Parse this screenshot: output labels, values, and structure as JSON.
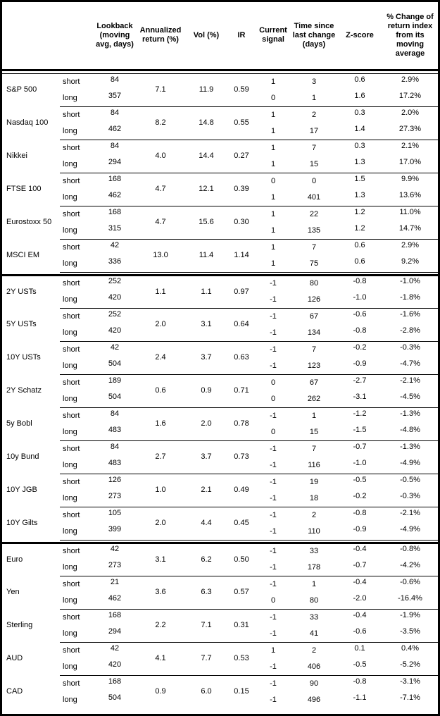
{
  "table": {
    "headers": [
      "",
      "",
      "Lookback (moving avg, days)",
      "Annualized return (%)",
      "Vol (%)",
      "IR",
      "Current signal",
      "Time since last change (days)",
      "Z-score",
      "% Change of return index from its moving average"
    ],
    "sections": [
      {
        "assets": [
          {
            "name": "S&P 500",
            "annualized_return": "7.1",
            "vol": "11.9",
            "ir": "0.59",
            "rows": [
              {
                "pos": "short",
                "lookback": "84",
                "signal": "1",
                "time_since_change": "3",
                "z_score": "0.6",
                "pct_change": "2.9%"
              },
              {
                "pos": "long",
                "lookback": "357",
                "signal": "0",
                "time_since_change": "1",
                "z_score": "1.6",
                "pct_change": "17.2%"
              }
            ]
          },
          {
            "name": "Nasdaq 100",
            "annualized_return": "8.2",
            "vol": "14.8",
            "ir": "0.55",
            "rows": [
              {
                "pos": "short",
                "lookback": "84",
                "signal": "1",
                "time_since_change": "2",
                "z_score": "0.3",
                "pct_change": "2.0%"
              },
              {
                "pos": "long",
                "lookback": "462",
                "signal": "1",
                "time_since_change": "17",
                "z_score": "1.4",
                "pct_change": "27.3%"
              }
            ]
          },
          {
            "name": "Nikkei",
            "annualized_return": "4.0",
            "vol": "14.4",
            "ir": "0.27",
            "rows": [
              {
                "pos": "short",
                "lookback": "84",
                "signal": "1",
                "time_since_change": "7",
                "z_score": "0.3",
                "pct_change": "2.1%"
              },
              {
                "pos": "long",
                "lookback": "294",
                "signal": "1",
                "time_since_change": "15",
                "z_score": "1.3",
                "pct_change": "17.0%"
              }
            ]
          },
          {
            "name": "FTSE 100",
            "annualized_return": "4.7",
            "vol": "12.1",
            "ir": "0.39",
            "rows": [
              {
                "pos": "short",
                "lookback": "168",
                "signal": "0",
                "time_since_change": "0",
                "z_score": "1.5",
                "pct_change": "9.9%"
              },
              {
                "pos": "long",
                "lookback": "462",
                "signal": "1",
                "time_since_change": "401",
                "z_score": "1.3",
                "pct_change": "13.6%"
              }
            ]
          },
          {
            "name": "Eurostoxx 50",
            "annualized_return": "4.7",
            "vol": "15.6",
            "ir": "0.30",
            "rows": [
              {
                "pos": "short",
                "lookback": "168",
                "signal": "1",
                "time_since_change": "22",
                "z_score": "1.2",
                "pct_change": "11.0%"
              },
              {
                "pos": "long",
                "lookback": "315",
                "signal": "1",
                "time_since_change": "135",
                "z_score": "1.2",
                "pct_change": "14.7%"
              }
            ]
          },
          {
            "name": "MSCI EM",
            "annualized_return": "13.0",
            "vol": "11.4",
            "ir": "1.14",
            "rows": [
              {
                "pos": "short",
                "lookback": "42",
                "signal": "1",
                "time_since_change": "7",
                "z_score": "0.6",
                "pct_change": "2.9%"
              },
              {
                "pos": "long",
                "lookback": "336",
                "signal": "1",
                "time_since_change": "75",
                "z_score": "0.6",
                "pct_change": "9.2%"
              }
            ]
          }
        ]
      },
      {
        "assets": [
          {
            "name": "2Y USTs",
            "annualized_return": "1.1",
            "vol": "1.1",
            "ir": "0.97",
            "rows": [
              {
                "pos": "short",
                "lookback": "252",
                "signal": "-1",
                "time_since_change": "80",
                "z_score": "-0.8",
                "pct_change": "-1.0%"
              },
              {
                "pos": "long",
                "lookback": "420",
                "signal": "-1",
                "time_since_change": "126",
                "z_score": "-1.0",
                "pct_change": "-1.8%"
              }
            ]
          },
          {
            "name": "5Y USTs",
            "annualized_return": "2.0",
            "vol": "3.1",
            "ir": "0.64",
            "rows": [
              {
                "pos": "short",
                "lookback": "252",
                "signal": "-1",
                "time_since_change": "67",
                "z_score": "-0.6",
                "pct_change": "-1.6%"
              },
              {
                "pos": "long",
                "lookback": "420",
                "signal": "-1",
                "time_since_change": "134",
                "z_score": "-0.8",
                "pct_change": "-2.8%"
              }
            ]
          },
          {
            "name": "10Y USTs",
            "annualized_return": "2.4",
            "vol": "3.7",
            "ir": "0.63",
            "rows": [
              {
                "pos": "short",
                "lookback": "42",
                "signal": "-1",
                "time_since_change": "7",
                "z_score": "-0.2",
                "pct_change": "-0.3%"
              },
              {
                "pos": "long",
                "lookback": "504",
                "signal": "-1",
                "time_since_change": "123",
                "z_score": "-0.9",
                "pct_change": "-4.7%"
              }
            ]
          },
          {
            "name": "2Y Schatz",
            "annualized_return": "0.6",
            "vol": "0.9",
            "ir": "0.71",
            "rows": [
              {
                "pos": "short",
                "lookback": "189",
                "signal": "0",
                "time_since_change": "67",
                "z_score": "-2.7",
                "pct_change": "-2.1%"
              },
              {
                "pos": "long",
                "lookback": "504",
                "signal": "0",
                "time_since_change": "262",
                "z_score": "-3.1",
                "pct_change": "-4.5%"
              }
            ]
          },
          {
            "name": "5y Bobl",
            "annualized_return": "1.6",
            "vol": "2.0",
            "ir": "0.78",
            "rows": [
              {
                "pos": "short",
                "lookback": "84",
                "signal": "-1",
                "time_since_change": "1",
                "z_score": "-1.2",
                "pct_change": "-1.3%"
              },
              {
                "pos": "long",
                "lookback": "483",
                "signal": "0",
                "time_since_change": "15",
                "z_score": "-1.5",
                "pct_change": "-4.8%"
              }
            ]
          },
          {
            "name": "10y Bund",
            "annualized_return": "2.7",
            "vol": "3.7",
            "ir": "0.73",
            "rows": [
              {
                "pos": "short",
                "lookback": "84",
                "signal": "-1",
                "time_since_change": "7",
                "z_score": "-0.7",
                "pct_change": "-1.3%"
              },
              {
                "pos": "long",
                "lookback": "483",
                "signal": "-1",
                "time_since_change": "116",
                "z_score": "-1.0",
                "pct_change": "-4.9%"
              }
            ]
          },
          {
            "name": "10Y JGB",
            "annualized_return": "1.0",
            "vol": "2.1",
            "ir": "0.49",
            "rows": [
              {
                "pos": "short",
                "lookback": "126",
                "signal": "-1",
                "time_since_change": "19",
                "z_score": "-0.5",
                "pct_change": "-0.5%"
              },
              {
                "pos": "long",
                "lookback": "273",
                "signal": "-1",
                "time_since_change": "18",
                "z_score": "-0.2",
                "pct_change": "-0.3%"
              }
            ]
          },
          {
            "name": "10Y Gilts",
            "annualized_return": "2.0",
            "vol": "4.4",
            "ir": "0.45",
            "rows": [
              {
                "pos": "short",
                "lookback": "105",
                "signal": "-1",
                "time_since_change": "2",
                "z_score": "-0.8",
                "pct_change": "-2.1%"
              },
              {
                "pos": "long",
                "lookback": "399",
                "signal": "-1",
                "time_since_change": "110",
                "z_score": "-0.9",
                "pct_change": "-4.9%"
              }
            ]
          }
        ]
      },
      {
        "assets": [
          {
            "name": "Euro",
            "annualized_return": "3.1",
            "vol": "6.2",
            "ir": "0.50",
            "rows": [
              {
                "pos": "short",
                "lookback": "42",
                "signal": "-1",
                "time_since_change": "33",
                "z_score": "-0.4",
                "pct_change": "-0.8%"
              },
              {
                "pos": "long",
                "lookback": "273",
                "signal": "-1",
                "time_since_change": "178",
                "z_score": "-0.7",
                "pct_change": "-4.2%"
              }
            ]
          },
          {
            "name": "Yen",
            "annualized_return": "3.6",
            "vol": "6.3",
            "ir": "0.57",
            "rows": [
              {
                "pos": "short",
                "lookback": "21",
                "signal": "-1",
                "time_since_change": "1",
                "z_score": "-0.4",
                "pct_change": "-0.6%"
              },
              {
                "pos": "long",
                "lookback": "462",
                "signal": "0",
                "time_since_change": "80",
                "z_score": "-2.0",
                "pct_change": "-16.4%"
              }
            ]
          },
          {
            "name": "Sterling",
            "annualized_return": "2.2",
            "vol": "7.1",
            "ir": "0.31",
            "rows": [
              {
                "pos": "short",
                "lookback": "168",
                "signal": "-1",
                "time_since_change": "33",
                "z_score": "-0.4",
                "pct_change": "-1.9%"
              },
              {
                "pos": "long",
                "lookback": "294",
                "signal": "-1",
                "time_since_change": "41",
                "z_score": "-0.6",
                "pct_change": "-3.5%"
              }
            ]
          },
          {
            "name": "AUD",
            "annualized_return": "4.1",
            "vol": "7.7",
            "ir": "0.53",
            "rows": [
              {
                "pos": "short",
                "lookback": "42",
                "signal": "1",
                "time_since_change": "2",
                "z_score": "0.1",
                "pct_change": "0.4%"
              },
              {
                "pos": "long",
                "lookback": "420",
                "signal": "-1",
                "time_since_change": "406",
                "z_score": "-0.5",
                "pct_change": "-5.2%"
              }
            ]
          },
          {
            "name": "CAD",
            "annualized_return": "0.9",
            "vol": "6.0",
            "ir": "0.15",
            "rows": [
              {
                "pos": "short",
                "lookback": "168",
                "signal": "-1",
                "time_since_change": "90",
                "z_score": "-0.8",
                "pct_change": "-3.1%"
              },
              {
                "pos": "long",
                "lookback": "504",
                "signal": "-1",
                "time_since_change": "496",
                "z_score": "-1.1",
                "pct_change": "-7.1%"
              }
            ]
          }
        ]
      }
    ]
  }
}
